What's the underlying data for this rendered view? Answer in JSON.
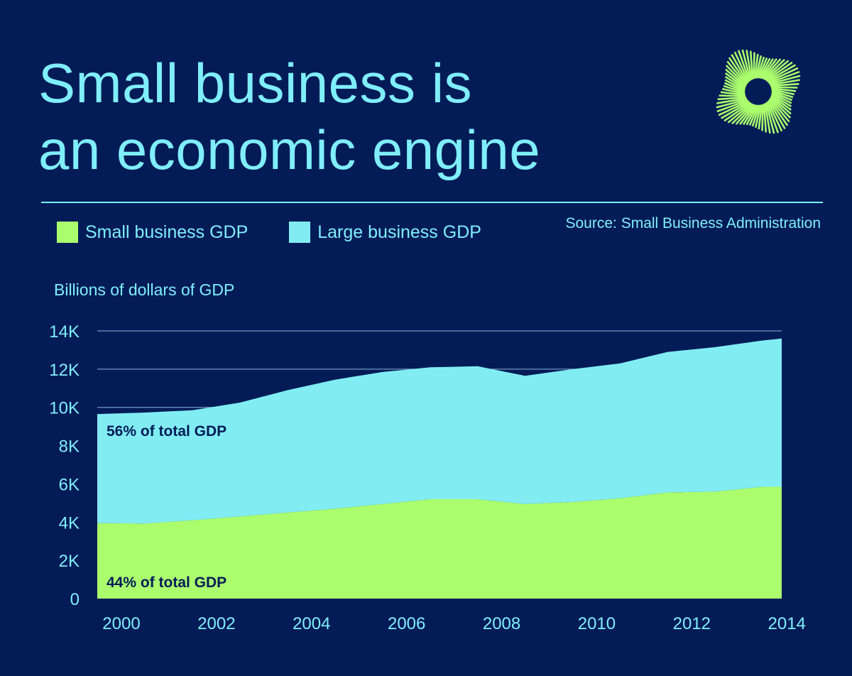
{
  "title": {
    "line1": "Small business is",
    "line2": "an economic engine"
  },
  "source": "Source: Small Business Administration",
  "colors": {
    "background": "#031c58",
    "accent": "#7feefa",
    "small_business": "#abfd6d",
    "large_business": "#81edf3",
    "annotation_text": "#031c58",
    "logo": "#abfd6d"
  },
  "logo": {
    "icon": "starburst-logo-icon"
  },
  "chart_data": {
    "type": "area",
    "stacked": true,
    "ylabel": "Billions of dollars of GDP",
    "xlabel": "",
    "ylim": [
      0,
      14000
    ],
    "xlim": [
      2000,
      2014.4
    ],
    "grid": true,
    "legend_position": "top-left",
    "y_ticks": [
      0,
      2000,
      4000,
      6000,
      8000,
      10000,
      12000,
      14000
    ],
    "y_tick_labels": [
      "0",
      "2K",
      "4K",
      "6K",
      "8K",
      "10K",
      "12K",
      "14K"
    ],
    "x_ticks": [
      2000,
      2002,
      2004,
      2006,
      2008,
      2010,
      2012,
      2014
    ],
    "x_tick_labels": [
      "2000",
      "2002",
      "2004",
      "2006",
      "2008",
      "2010",
      "2012",
      "2014"
    ],
    "x": [
      2000,
      2001,
      2002,
      2003,
      2004,
      2005,
      2006,
      2007,
      2008,
      2009,
      2010,
      2011,
      2012,
      2013,
      2014,
      2014.4
    ],
    "series": [
      {
        "name": "Small business GDP",
        "color": "#abfd6d",
        "values": [
          3950,
          3930,
          4100,
          4300,
          4500,
          4700,
          4950,
          5200,
          5200,
          4950,
          5050,
          5250,
          5550,
          5600,
          5850,
          5850
        ]
      },
      {
        "name": "Large business GDP",
        "color": "#81edf3",
        "values": [
          5700,
          5800,
          5750,
          5950,
          6400,
          6750,
          6900,
          6900,
          6950,
          6700,
          6950,
          7050,
          7350,
          7550,
          7650,
          7750
        ]
      }
    ],
    "annotations": [
      {
        "text": "56% of total GDP",
        "series": "Large business GDP"
      },
      {
        "text": "44% of total GDP",
        "series": "Small business GDP"
      }
    ]
  }
}
